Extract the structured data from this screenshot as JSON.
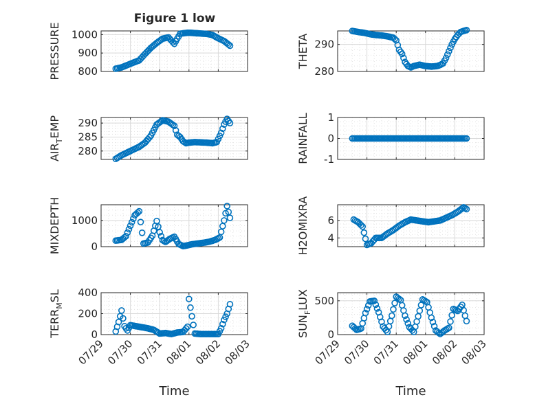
{
  "figure_title": "Figure 1 low",
  "xlabel": "Time",
  "date_ticks": [
    "07/29",
    "07/30",
    "07/31",
    "08/01",
    "08/02",
    "08/03"
  ],
  "series_color": "#0072BD",
  "chart_data": [
    {
      "type": "scatter",
      "id": "pressure",
      "ylabel": "PRESSURE",
      "ytick_labels": [
        "800",
        "900",
        "1000"
      ],
      "ylim": [
        800,
        1020
      ],
      "x": [
        0.5,
        0.7,
        0.9,
        1.1,
        1.3,
        1.5,
        1.7,
        1.9,
        2.1,
        2.3,
        2.5,
        2.7,
        2.85,
        2.95,
        3.05,
        3.2,
        3.4,
        3.6,
        3.8,
        4.0,
        4.2,
        4.4
      ],
      "y": [
        815,
        822,
        835,
        848,
        860,
        895,
        928,
        955,
        978,
        985,
        950,
        1005,
        1008,
        1010,
        1010,
        1008,
        1006,
        1004,
        998,
        980,
        965,
        940
      ]
    },
    {
      "type": "scatter",
      "id": "theta",
      "ylabel": "THETA",
      "ytick_labels": [
        "280",
        "290"
      ],
      "ylim": [
        280,
        295
      ],
      "x": [
        0.5,
        0.7,
        0.9,
        1.1,
        1.3,
        1.5,
        1.7,
        1.9,
        2.0,
        2.1,
        2.2,
        2.3,
        2.4,
        2.5,
        2.6,
        2.8,
        3.0,
        3.2,
        3.4,
        3.5,
        3.6,
        3.7,
        3.8,
        3.9,
        4.0,
        4.1,
        4.2,
        4.3,
        4.4
      ],
      "y": [
        295,
        294.6,
        294.3,
        293.8,
        293.5,
        293.3,
        293.0,
        292.5,
        291.5,
        288,
        286.5,
        283.5,
        282,
        281.5,
        282,
        282.5,
        282,
        281.8,
        282,
        282.4,
        283,
        285,
        287.5,
        290,
        292,
        293.5,
        294.6,
        295,
        295.3
      ]
    },
    {
      "type": "scatter",
      "id": "air_temp",
      "ylabel": "AIR",
      "ylabel_sub": "T",
      "ylabel_rest": "EMP",
      "ytick_labels": [
        "280",
        "285",
        "290"
      ],
      "ylim": [
        277,
        292
      ],
      "x": [
        0.5,
        0.7,
        0.9,
        1.1,
        1.3,
        1.5,
        1.7,
        1.9,
        2.1,
        2.3,
        2.5,
        2.6,
        2.7,
        2.8,
        2.9,
        3.0,
        3.2,
        3.4,
        3.6,
        3.8,
        3.95,
        4.1,
        4.2,
        4.3,
        4.4
      ],
      "y": [
        277.2,
        278.5,
        279.5,
        280.5,
        281.5,
        283,
        285.5,
        289.5,
        291,
        290.5,
        289,
        285.8,
        285,
        283.5,
        282.8,
        283,
        283.2,
        283.1,
        283,
        282.8,
        283.2,
        286.5,
        289.5,
        291.5,
        290
      ]
    },
    {
      "type": "scatter",
      "id": "rainfall",
      "ylabel": "RAINFALL",
      "ytick_labels": [
        "-1",
        "0",
        "1"
      ],
      "ylim": [
        -1,
        1
      ],
      "x": [
        0.5,
        0.7,
        0.9,
        1.1,
        1.3,
        1.5,
        1.7,
        1.9,
        2.1,
        2.3,
        2.5,
        2.7,
        2.9,
        3.1,
        3.3,
        3.5,
        3.7,
        3.9,
        4.1,
        4.3,
        4.4
      ],
      "y": [
        0,
        0,
        0,
        0,
        0,
        0,
        0,
        0,
        0,
        0,
        0,
        0,
        0,
        0,
        0,
        0,
        0,
        0,
        0,
        0,
        0
      ]
    },
    {
      "type": "scatter",
      "id": "mixdepth",
      "ylabel": "MIXDEPTH",
      "ytick_labels": [
        "0",
        "1000"
      ],
      "ylim": [
        0,
        1600
      ],
      "x": [
        0.5,
        0.7,
        0.85,
        1.0,
        1.15,
        1.3,
        1.45,
        1.6,
        1.75,
        1.9,
        2.0,
        2.1,
        2.2,
        2.35,
        2.5,
        2.65,
        2.8,
        2.95,
        3.1,
        3.3,
        3.5,
        3.7,
        3.9,
        4.05,
        4.2,
        4.3,
        4.4
      ],
      "y": [
        230,
        260,
        400,
        800,
        1200,
        1350,
        120,
        160,
        420,
        980,
        550,
        250,
        180,
        300,
        380,
        100,
        20,
        50,
        90,
        120,
        150,
        190,
        260,
        350,
        1000,
        1550,
        1100
      ]
    },
    {
      "type": "scatter",
      "id": "h2omixra",
      "ylabel": "H2OMIXRA",
      "ytick_labels": [
        "4",
        "6"
      ],
      "ylim": [
        3,
        7.8
      ],
      "x": [
        0.55,
        0.7,
        0.85,
        1.0,
        1.15,
        1.3,
        1.5,
        1.7,
        1.9,
        2.1,
        2.3,
        2.5,
        2.7,
        2.9,
        3.1,
        3.3,
        3.5,
        3.7,
        3.9,
        4.1,
        4.3,
        4.4
      ],
      "y": [
        6.1,
        5.8,
        5.3,
        3.2,
        3.4,
        4.0,
        4.0,
        4.5,
        4.9,
        5.4,
        5.8,
        6.1,
        6.0,
        5.9,
        5.8,
        5.9,
        6.0,
        6.3,
        6.6,
        7.0,
        7.5,
        7.3
      ]
    },
    {
      "type": "scatter",
      "id": "terr_msl",
      "ylabel": "TERR",
      "ylabel_sub": "M",
      "ylabel_rest": "SL",
      "ytick_labels": [
        "0",
        "200",
        "400"
      ],
      "ylim": [
        0,
        400
      ],
      "x": [
        0.5,
        0.6,
        0.7,
        0.8,
        0.9,
        1.0,
        1.2,
        1.4,
        1.6,
        1.8,
        2.0,
        2.2,
        2.4,
        2.6,
        2.8,
        2.95,
        3.0,
        3.2,
        3.4,
        3.6,
        3.8,
        4.0,
        4.1,
        4.2,
        4.3,
        4.4
      ],
      "y": [
        30,
        120,
        230,
        80,
        40,
        90,
        80,
        70,
        60,
        45,
        10,
        15,
        5,
        20,
        25,
        75,
        340,
        10,
        5,
        5,
        5,
        5,
        60,
        140,
        200,
        290
      ]
    },
    {
      "type": "scatter",
      "id": "sun_flux",
      "ylabel": "SUN",
      "ylabel_sub": "F",
      "ylabel_rest": "LUX",
      "ytick_labels": [
        "0",
        "500"
      ],
      "ylim": [
        0,
        620
      ],
      "x": [
        0.5,
        0.65,
        0.8,
        0.95,
        1.1,
        1.25,
        1.4,
        1.55,
        1.7,
        1.85,
        2.0,
        2.15,
        2.3,
        2.45,
        2.6,
        2.75,
        2.9,
        3.05,
        3.2,
        3.35,
        3.5,
        3.65,
        3.8,
        3.95,
        4.1,
        4.25,
        4.4
      ],
      "y": [
        130,
        70,
        90,
        320,
        490,
        500,
        330,
        120,
        40,
        280,
        560,
        510,
        280,
        110,
        40,
        270,
        520,
        480,
        250,
        60,
        10,
        60,
        100,
        380,
        350,
        440,
        200
      ]
    }
  ]
}
